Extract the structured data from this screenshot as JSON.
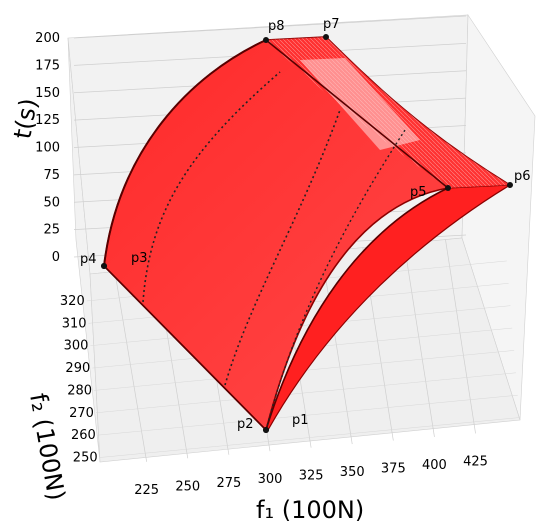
{
  "chart_data": {
    "type": "surface3d",
    "xlabel": "f_1 (100N)",
    "ylabel": "f_2 (100N)",
    "zlabel": "t(s)",
    "x_ticks": [
      225,
      250,
      275,
      300,
      325,
      350,
      375,
      400,
      425
    ],
    "y_ticks": [
      250,
      260,
      270,
      280,
      290,
      300,
      310,
      320
    ],
    "z_ticks": [
      0,
      25,
      50,
      75,
      100,
      125,
      150,
      175,
      200
    ],
    "xlim": [
      210,
      435
    ],
    "ylim": [
      248,
      324
    ],
    "zlim": [
      0,
      200
    ],
    "grid": true,
    "surface_color": "#ff0000",
    "edge_color": "#8b0000",
    "points": [
      {
        "name": "p1",
        "f1": 300,
        "f2": 255,
        "t": 0
      },
      {
        "name": "p2",
        "f1": 300,
        "f2": 255,
        "t": 0
      },
      {
        "name": "p3",
        "f1": 225,
        "f2": 320,
        "t": 0
      },
      {
        "name": "p4",
        "f1": 215,
        "f2": 320,
        "t": 0
      },
      {
        "name": "p5",
        "f1": 385,
        "f2": 300,
        "t": 90
      },
      {
        "name": "p6",
        "f1": 430,
        "f2": 300,
        "t": 90
      },
      {
        "name": "p7",
        "f1": 345,
        "f2": 320,
        "t": 200
      },
      {
        "name": "p8",
        "f1": 300,
        "f2": 320,
        "t": 200
      }
    ]
  }
}
